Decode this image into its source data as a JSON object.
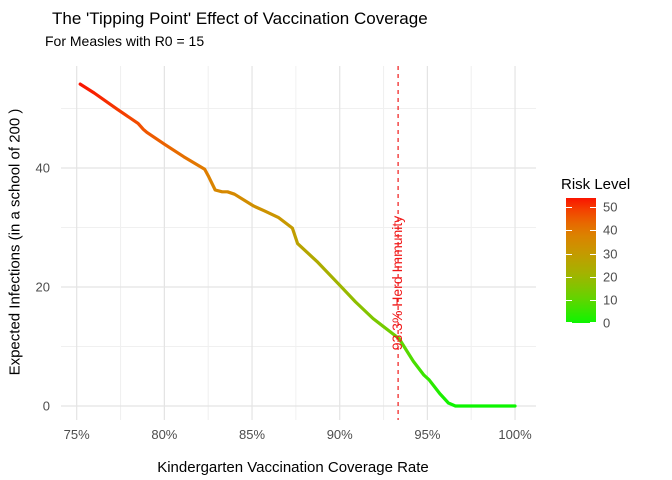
{
  "chart_data": {
    "type": "line",
    "title": "The 'Tipping Point' Effect of Vaccination Coverage",
    "subtitle": "For Measles with R0 = 15",
    "xlabel": "Kindergarten Vaccination Coverage Rate",
    "ylabel": "Expected Infections (in a school of 200 )",
    "x_ticks": [
      {
        "value": 75,
        "label": "75%"
      },
      {
        "value": 80,
        "label": "80%"
      },
      {
        "value": 85,
        "label": "85%"
      },
      {
        "value": 90,
        "label": "90%"
      },
      {
        "value": 95,
        "label": "95%"
      },
      {
        "value": 100,
        "label": "100%"
      }
    ],
    "x_minor": [
      77.5,
      82.5,
      87.5,
      92.5,
      97.5
    ],
    "y_ticks": [
      {
        "value": 0,
        "label": "0"
      },
      {
        "value": 20,
        "label": "20"
      },
      {
        "value": 40,
        "label": "40"
      }
    ],
    "y_minor": [
      10,
      30,
      50
    ],
    "xlim": [
      74.1,
      101.2
    ],
    "ylim": [
      -2.3,
      57.2
    ],
    "grid": "on",
    "points": [
      [
        75.2,
        54.1
      ],
      [
        76.0,
        52.6
      ],
      [
        77.3,
        49.9
      ],
      [
        78.5,
        47.5
      ],
      [
        78.8,
        46.5
      ],
      [
        79.0,
        46.0
      ],
      [
        80.0,
        44.0
      ],
      [
        81.1,
        41.9
      ],
      [
        82.3,
        39.8
      ],
      [
        82.5,
        38.7
      ],
      [
        82.9,
        36.3
      ],
      [
        83.3,
        36.0
      ],
      [
        83.6,
        36.0
      ],
      [
        84.0,
        35.6
      ],
      [
        85.1,
        33.6
      ],
      [
        85.7,
        32.8
      ],
      [
        86.5,
        31.7
      ],
      [
        87.3,
        29.9
      ],
      [
        87.6,
        27.3
      ],
      [
        88.7,
        24.3
      ],
      [
        90.0,
        20.3
      ],
      [
        90.9,
        17.5
      ],
      [
        91.9,
        14.7
      ],
      [
        93.0,
        12.2
      ],
      [
        93.4,
        11.3
      ],
      [
        93.8,
        9.4
      ],
      [
        94.2,
        7.5
      ],
      [
        94.8,
        5.2
      ],
      [
        95.1,
        4.4
      ],
      [
        95.7,
        2.1
      ],
      [
        96.2,
        0.5
      ],
      [
        96.6,
        0.0
      ],
      [
        97.5,
        0.0
      ],
      [
        98.5,
        0.0
      ],
      [
        100.0,
        0.0
      ]
    ],
    "vline": {
      "x": 93.33,
      "style": "dashed",
      "color": "#f01818"
    },
    "annotation": {
      "text": "93.3% Herd Immunity",
      "x": 93.33,
      "color": "#f01818",
      "angle": 90
    },
    "legend": {
      "title": "Risk Level",
      "position": "right",
      "ticks": [
        {
          "value": 50,
          "label": "50"
        },
        {
          "value": 40,
          "label": "40"
        },
        {
          "value": 30,
          "label": "30"
        },
        {
          "value": 20,
          "label": "20"
        },
        {
          "value": 10,
          "label": "10"
        },
        {
          "value": 0,
          "label": "0"
        }
      ],
      "range": [
        0,
        54
      ]
    },
    "color_stops": [
      {
        "value": 0,
        "color": "#0df500"
      },
      {
        "value": 10,
        "color": "#5fd600"
      },
      {
        "value": 20,
        "color": "#9eb600"
      },
      {
        "value": 30,
        "color": "#c59b00"
      },
      {
        "value": 40,
        "color": "#e17b00"
      },
      {
        "value": 47,
        "color": "#f15100"
      },
      {
        "value": 54,
        "color": "#fa1400"
      }
    ],
    "style": {
      "grid_major": "#e4e4e4",
      "grid_minor": "#f0f0f0",
      "accent_red": "#f01818",
      "tick_text": "#4d4d4d"
    }
  }
}
